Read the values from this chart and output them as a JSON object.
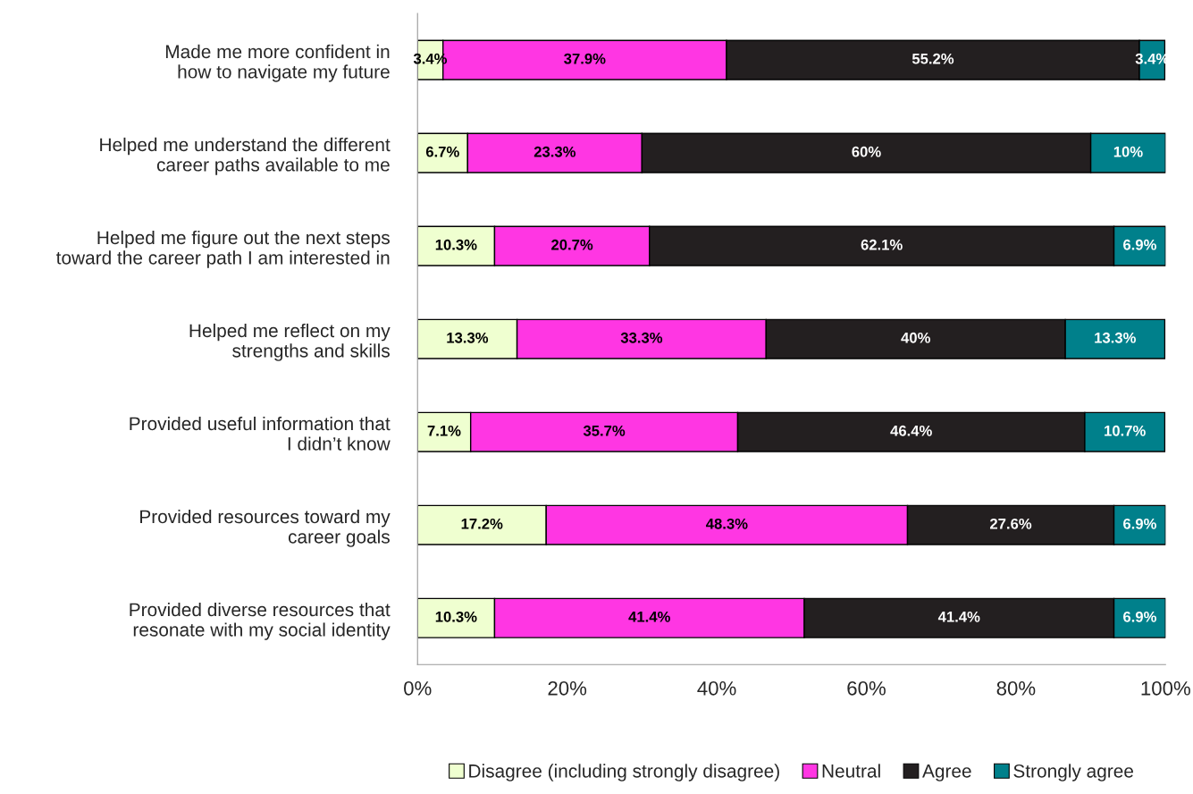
{
  "chart_data": {
    "type": "bar",
    "orientation": "horizontal",
    "stacked": true,
    "categories": [
      "Made me more confident in\nhow to navigate my future",
      "Helped me understand the different\ncareer paths available to me",
      "Helped me figure out the next steps\ntoward the career path I am interested in",
      "Helped me reflect on my\nstrengths and skills",
      "Provided useful information that\nI didn’t know",
      "Provided resources toward my\ncareer goals",
      "Provided diverse resources that\nresonate with my social identity"
    ],
    "series": [
      {
        "name": "Disagree (including strongly disagree)",
        "color": "#efffd0",
        "values": [
          3.4,
          6.7,
          10.3,
          13.3,
          7.1,
          17.2,
          10.3
        ],
        "value_labels": [
          "3.4%",
          "6.7%",
          "10.3%",
          "13.3%",
          "7.1%",
          "17.2%",
          "10.3%"
        ]
      },
      {
        "name": "Neutral",
        "color": "#ff36e3",
        "values": [
          37.9,
          23.3,
          20.7,
          33.3,
          35.7,
          48.3,
          41.4
        ],
        "value_labels": [
          "37.9%",
          "23.3%",
          "20.7%",
          "33.3%",
          "35.7%",
          "48.3%",
          "41.4%"
        ]
      },
      {
        "name": "Agree",
        "color": "#231f20",
        "values": [
          55.2,
          60,
          62.1,
          40,
          46.4,
          27.6,
          41.4
        ],
        "value_labels": [
          "55.2%",
          "60%",
          "62.1%",
          "40%",
          "46.4%",
          "27.6%",
          "41.4%"
        ]
      },
      {
        "name": "Strongly agree",
        "color": "#00808b",
        "values": [
          3.4,
          10,
          6.9,
          13.3,
          10.7,
          6.9,
          6.9
        ],
        "value_labels": [
          "3.4%",
          "10%",
          "6.9%",
          "13.3%",
          "10.7%",
          "6.9%",
          "6.9%"
        ]
      }
    ],
    "xlim": [
      0,
      100
    ],
    "xticks": [
      {
        "value": 0,
        "label": "0%"
      },
      {
        "value": 20,
        "label": "20%"
      },
      {
        "value": 40,
        "label": "40%"
      },
      {
        "value": 60,
        "label": "60%"
      },
      {
        "value": 80,
        "label": "80%"
      },
      {
        "value": 100,
        "label": "100%"
      }
    ],
    "grid": false,
    "legend": "bottom"
  }
}
